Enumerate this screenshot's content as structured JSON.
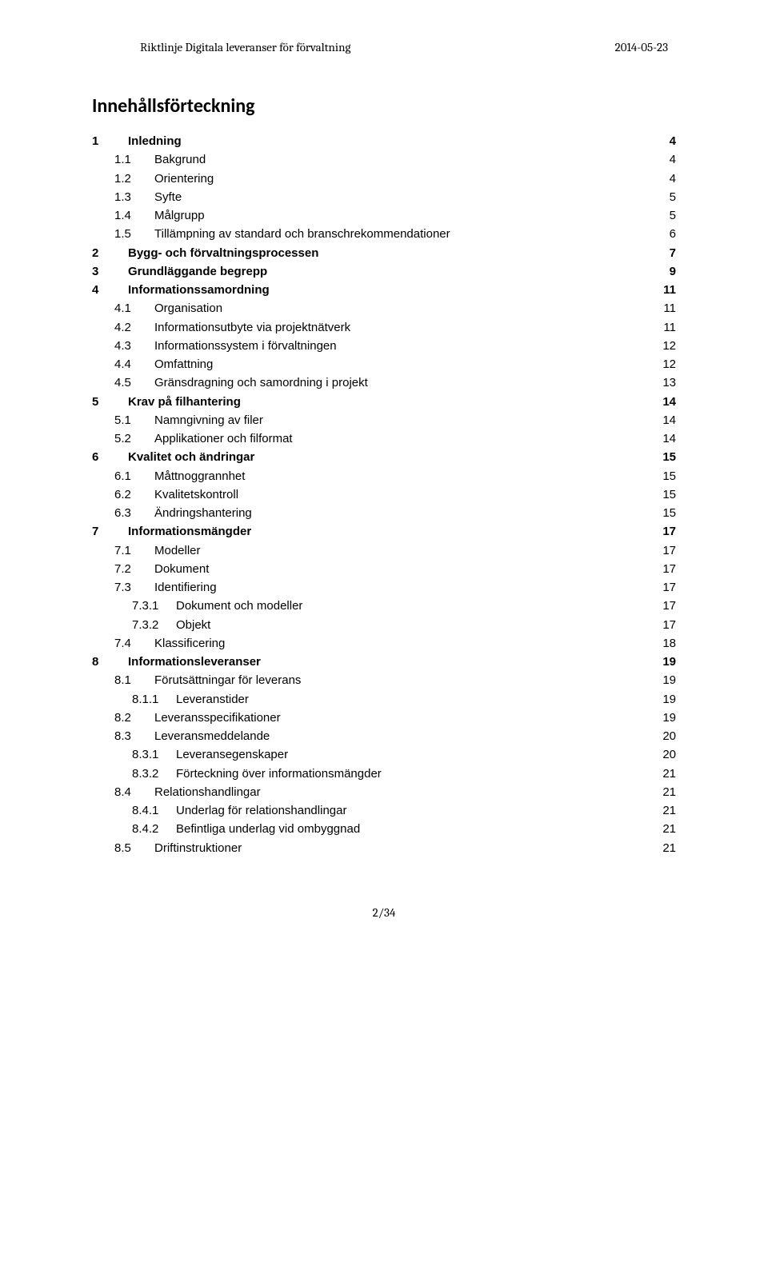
{
  "header": {
    "left": "Riktlinje Digitala leveranser för förvaltning",
    "right": "2014-05-23"
  },
  "toc_title": "Innehållsförteckning",
  "toc": [
    {
      "level": 1,
      "num": "1",
      "label": "Inledning",
      "page": "4"
    },
    {
      "level": 2,
      "num": "1.1",
      "label": "Bakgrund",
      "page": "4"
    },
    {
      "level": 2,
      "num": "1.2",
      "label": "Orientering",
      "page": "4"
    },
    {
      "level": 2,
      "num": "1.3",
      "label": "Syfte",
      "page": "5"
    },
    {
      "level": 2,
      "num": "1.4",
      "label": "Målgrupp",
      "page": "5"
    },
    {
      "level": 2,
      "num": "1.5",
      "label": "Tillämpning av standard och branschrekommendationer",
      "page": "6"
    },
    {
      "level": 1,
      "num": "2",
      "label": "Bygg- och förvaltningsprocessen",
      "page": "7"
    },
    {
      "level": 1,
      "num": "3",
      "label": "Grundläggande begrepp",
      "page": "9"
    },
    {
      "level": 1,
      "num": "4",
      "label": "Informationssamordning",
      "page": "11"
    },
    {
      "level": 2,
      "num": "4.1",
      "label": "Organisation",
      "page": "11"
    },
    {
      "level": 2,
      "num": "4.2",
      "label": "Informationsutbyte via projektnätverk",
      "page": "11"
    },
    {
      "level": 2,
      "num": "4.3",
      "label": "Informationssystem i förvaltningen",
      "page": "12"
    },
    {
      "level": 2,
      "num": "4.4",
      "label": "Omfattning",
      "page": "12"
    },
    {
      "level": 2,
      "num": "4.5",
      "label": "Gränsdragning och samordning i projekt",
      "page": "13"
    },
    {
      "level": 1,
      "num": "5",
      "label": "Krav på filhantering",
      "page": "14"
    },
    {
      "level": 2,
      "num": "5.1",
      "label": "Namngivning av filer",
      "page": "14"
    },
    {
      "level": 2,
      "num": "5.2",
      "label": "Applikationer och filformat",
      "page": "14"
    },
    {
      "level": 1,
      "num": "6",
      "label": "Kvalitet och ändringar",
      "page": "15"
    },
    {
      "level": 2,
      "num": "6.1",
      "label": "Måttnoggrannhet",
      "page": "15"
    },
    {
      "level": 2,
      "num": "6.2",
      "label": "Kvalitetskontroll",
      "page": "15"
    },
    {
      "level": 2,
      "num": "6.3",
      "label": "Ändringshantering",
      "page": "15"
    },
    {
      "level": 1,
      "num": "7",
      "label": "Informationsmängder",
      "page": "17"
    },
    {
      "level": 2,
      "num": "7.1",
      "label": "Modeller",
      "page": "17"
    },
    {
      "level": 2,
      "num": "7.2",
      "label": "Dokument",
      "page": "17"
    },
    {
      "level": 2,
      "num": "7.3",
      "label": "Identifiering",
      "page": "17"
    },
    {
      "level": 3,
      "num": "7.3.1",
      "label": "Dokument och modeller",
      "page": "17"
    },
    {
      "level": 3,
      "num": "7.3.2",
      "label": "Objekt",
      "page": "17"
    },
    {
      "level": 2,
      "num": "7.4",
      "label": "Klassificering",
      "page": "18"
    },
    {
      "level": 1,
      "num": "8",
      "label": "Informationsleveranser",
      "page": "19"
    },
    {
      "level": 2,
      "num": "8.1",
      "label": "Förutsättningar för leverans",
      "page": "19"
    },
    {
      "level": 3,
      "num": "8.1.1",
      "label": "Leveranstider",
      "page": "19"
    },
    {
      "level": 2,
      "num": "8.2",
      "label": "Leveransspecifikationer",
      "page": "19"
    },
    {
      "level": 2,
      "num": "8.3",
      "label": "Leveransmeddelande",
      "page": "20"
    },
    {
      "level": 3,
      "num": "8.3.1",
      "label": "Leveransegenskaper",
      "page": "20"
    },
    {
      "level": 3,
      "num": "8.3.2",
      "label": "Förteckning över informationsmängder",
      "page": "21"
    },
    {
      "level": 2,
      "num": "8.4",
      "label": "Relationshandlingar",
      "page": "21"
    },
    {
      "level": 3,
      "num": "8.4.1",
      "label": "Underlag för relationshandlingar",
      "page": "21"
    },
    {
      "level": 3,
      "num": "8.4.2",
      "label": "Befintliga underlag vid ombyggnad",
      "page": "21"
    },
    {
      "level": 2,
      "num": "8.5",
      "label": "Driftinstruktioner",
      "page": "21"
    }
  ],
  "footer": "2/34"
}
